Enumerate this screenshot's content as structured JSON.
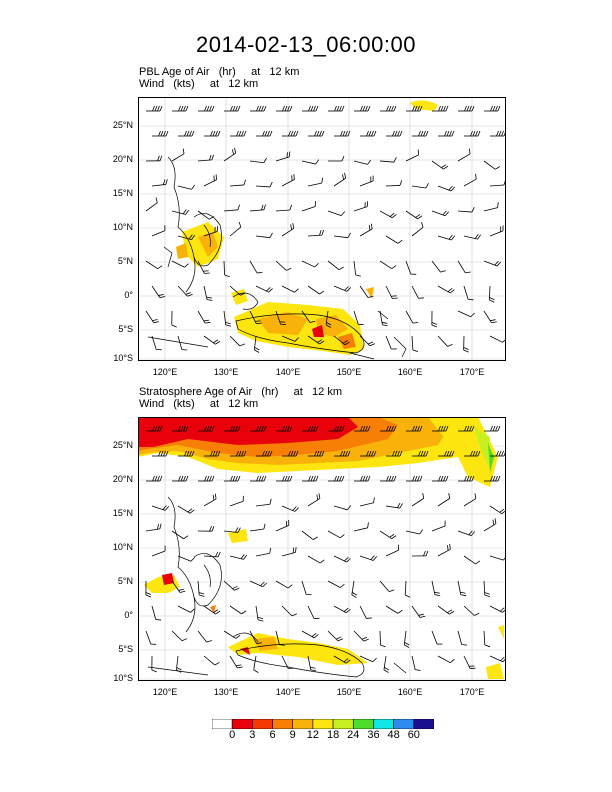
{
  "title": "2014-02-13_06:00:00",
  "panels": [
    {
      "line1": "PBL Age of Air   (hr)     at   12 km",
      "line2": "Wind   (kts)     at   12 km"
    },
    {
      "line1": "Stratosphere Age of Air   (hr)     at   12 km",
      "line2": "Wind   (kts)     at   12 km"
    }
  ],
  "lat_ticks": [
    "25°N",
    "20°N",
    "15°N",
    "10°N",
    "5°N",
    "0°",
    "5°S",
    "10°S"
  ],
  "lon_ticks": [
    "120°E",
    "130°E",
    "140°E",
    "150°E",
    "160°E",
    "170°E"
  ],
  "legend": {
    "labels": [
      "0",
      "3",
      "6",
      "9",
      "12",
      "18",
      "24",
      "36",
      "48",
      "60"
    ],
    "colors": [
      "#ffffff",
      "#e8000a",
      "#f53a05",
      "#f77f06",
      "#f9b20a",
      "#fde50f",
      "#c8f020",
      "#4ddd2a",
      "#10e6e6",
      "#2b8cf0",
      "#1a0f8f"
    ]
  }
}
